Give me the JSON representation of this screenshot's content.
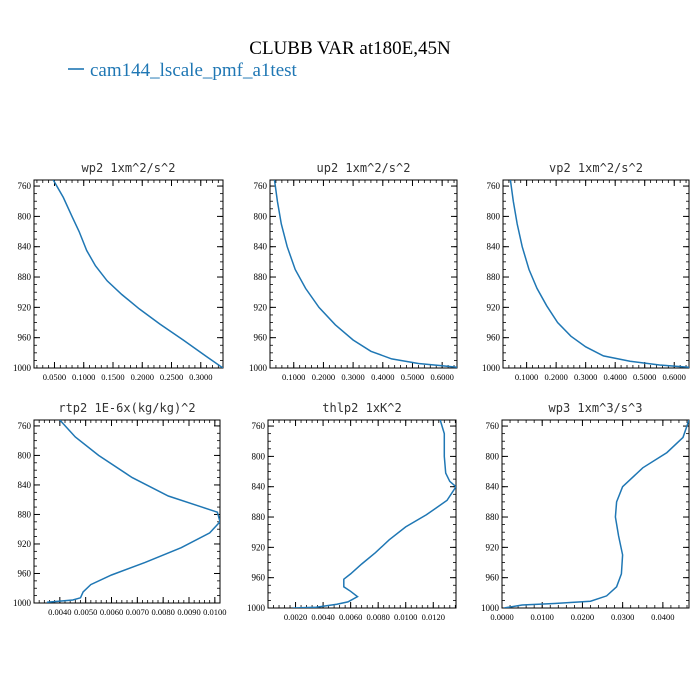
{
  "figure": {
    "title": "CLUBB VAR at180E,45N",
    "legend": {
      "label": "cam144_lscale_pmf_a1test",
      "color": "#1f77b4",
      "placement": "top-left"
    }
  },
  "chart_data": [
    {
      "type": "line",
      "title": "wp2  1xm^2/s^2",
      "xlim": [
        0.015,
        0.338
      ],
      "ylim": [
        1000,
        752
      ],
      "xticks": [
        0.05,
        0.1,
        0.15,
        0.2,
        0.25,
        0.3
      ],
      "xtick_labels": [
        "0.0500",
        "0.1000",
        "0.1500",
        "0.2000",
        "0.2500",
        "0.3000"
      ],
      "yticks": [
        760,
        800,
        840,
        880,
        920,
        960,
        1000
      ],
      "ytick_labels": [
        "760",
        "800",
        "840",
        "880",
        "920",
        "960",
        "1000"
      ],
      "series": [
        {
          "name": "cam144_lscale_pmf_a1test",
          "x": [
            0.048,
            0.065,
            0.08,
            0.092,
            0.105,
            0.12,
            0.14,
            0.165,
            0.195,
            0.23,
            0.27,
            0.31,
            0.338
          ],
          "y": [
            752,
            775,
            800,
            820,
            845,
            865,
            885,
            903,
            922,
            942,
            963,
            985,
            1000
          ]
        }
      ]
    },
    {
      "type": "line",
      "title": "up2  1xm^2/s^2",
      "xlim": [
        0.02,
        0.65
      ],
      "ylim": [
        1000,
        752
      ],
      "xticks": [
        0.1,
        0.2,
        0.3,
        0.4,
        0.5,
        0.6
      ],
      "xtick_labels": [
        "0.1000",
        "0.2000",
        "0.3000",
        "0.4000",
        "0.5000",
        "0.6000"
      ],
      "yticks": [
        760,
        800,
        840,
        880,
        920,
        960,
        1000
      ],
      "ytick_labels": [
        "760",
        "800",
        "840",
        "880",
        "920",
        "960",
        "1000"
      ],
      "series": [
        {
          "name": "cam144_lscale_pmf_a1test",
          "x": [
            0.035,
            0.045,
            0.058,
            0.078,
            0.105,
            0.14,
            0.185,
            0.24,
            0.3,
            0.36,
            0.43,
            0.52,
            0.6,
            0.65
          ],
          "y": [
            752,
            780,
            810,
            840,
            870,
            895,
            920,
            943,
            963,
            978,
            988,
            994,
            997,
            999
          ]
        }
      ]
    },
    {
      "type": "line",
      "title": "vp2  1xm^2/s^2",
      "xlim": [
        0.02,
        0.65
      ],
      "ylim": [
        1000,
        752
      ],
      "xticks": [
        0.1,
        0.2,
        0.3,
        0.4,
        0.5,
        0.6
      ],
      "xtick_labels": [
        "0.1000",
        "0.2000",
        "0.3000",
        "0.4000",
        "0.5000",
        "0.6000"
      ],
      "yticks": [
        760,
        800,
        840,
        880,
        920,
        960,
        1000
      ],
      "ytick_labels": [
        "760",
        "800",
        "840",
        "880",
        "920",
        "960",
        "1000"
      ],
      "series": [
        {
          "name": "cam144_lscale_pmf_a1test",
          "x": [
            0.045,
            0.055,
            0.068,
            0.085,
            0.108,
            0.135,
            0.168,
            0.205,
            0.25,
            0.3,
            0.36,
            0.45,
            0.55,
            0.65
          ],
          "y": [
            752,
            780,
            810,
            840,
            870,
            895,
            918,
            940,
            958,
            972,
            984,
            991,
            996,
            999
          ]
        }
      ]
    },
    {
      "type": "line",
      "title": "rtp2  1E-6x(kg/kg)^2",
      "xlim": [
        3e-06,
        1.02e-05
      ],
      "ylim": [
        1000,
        752
      ],
      "xticks": [
        4e-06,
        5e-06,
        6e-06,
        7e-06,
        8e-06,
        9e-06,
        1e-05
      ],
      "xtick_labels": [
        "0.0040",
        "0.0050",
        "0.0060",
        "0.0070",
        "0.0080",
        "0.0090",
        "0.0100"
      ],
      "yticks": [
        760,
        800,
        840,
        880,
        920,
        960,
        1000
      ],
      "ytick_labels": [
        "760",
        "800",
        "840",
        "880",
        "920",
        "960",
        "1000"
      ],
      "series": [
        {
          "name": "cam144_lscale_pmf_a1test",
          "x": [
            4e-06,
            4.6e-06,
            5.5e-06,
            6.8e-06,
            8.2e-06,
            9.5e-06,
            1.01e-05,
            1.02e-05,
            9.8e-06,
            8.7e-06,
            7.3e-06,
            6e-06,
            5.2e-06,
            4.9e-06,
            4.8e-06,
            4.5e-06,
            3.5e-06
          ],
          "y": [
            752,
            775,
            800,
            830,
            855,
            870,
            877,
            890,
            905,
            925,
            945,
            962,
            975,
            985,
            993,
            996,
            999
          ]
        }
      ]
    },
    {
      "type": "line",
      "title": "thlp2  1xK^2",
      "xlim": [
        0.0,
        0.01365
      ],
      "ylim": [
        1000,
        752
      ],
      "xticks": [
        0.002,
        0.004,
        0.006,
        0.008,
        0.01,
        0.012
      ],
      "xtick_labels": [
        "0.0020",
        "0.0040",
        "0.0060",
        "0.0080",
        "0.0100",
        "0.0120"
      ],
      "yticks": [
        760,
        800,
        840,
        880,
        920,
        960,
        1000
      ],
      "ytick_labels": [
        "760",
        "800",
        "840",
        "880",
        "920",
        "960",
        "1000"
      ],
      "series": [
        {
          "name": "cam144_lscale_pmf_a1test",
          "x": [
            0.0125,
            0.0128,
            0.0128,
            0.0129,
            0.0132,
            0.01365,
            0.013,
            0.0115,
            0.01,
            0.0088,
            0.0078,
            0.0068,
            0.006,
            0.0055,
            0.0055,
            0.006,
            0.0065,
            0.0058,
            0.005,
            0.0035,
            0.0018
          ],
          "y": [
            752,
            770,
            800,
            822,
            833,
            840,
            858,
            877,
            893,
            910,
            927,
            942,
            955,
            962,
            972,
            978,
            985,
            992,
            995,
            999,
            1000
          ]
        }
      ]
    },
    {
      "type": "line",
      "title": "wp3  1xm^3/s^3",
      "xlim": [
        0.0,
        0.0465
      ],
      "ylim": [
        1000,
        752
      ],
      "xticks": [
        0.0,
        0.01,
        0.02,
        0.03,
        0.04
      ],
      "xtick_labels": [
        "0.0000",
        "0.0100",
        "0.0200",
        "0.0300",
        "0.0400"
      ],
      "yticks": [
        760,
        800,
        840,
        880,
        920,
        960,
        1000
      ],
      "ytick_labels": [
        "760",
        "800",
        "840",
        "880",
        "920",
        "960",
        "1000"
      ],
      "series": [
        {
          "name": "cam144_lscale_pmf_a1test",
          "x": [
            0.0465,
            0.045,
            0.041,
            0.035,
            0.03,
            0.0285,
            0.0282,
            0.029,
            0.03,
            0.0297,
            0.0285,
            0.026,
            0.022,
            0.013,
            0.005,
            0.0005
          ],
          "y": [
            752,
            775,
            795,
            815,
            840,
            860,
            880,
            905,
            930,
            955,
            972,
            984,
            991,
            994,
            996,
            1000
          ]
        }
      ]
    }
  ]
}
